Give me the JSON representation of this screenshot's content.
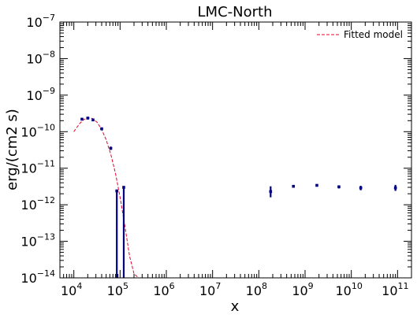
{
  "chart_data": {
    "type": "scatter",
    "title": "LMC-North",
    "xlabel": "x",
    "ylabel": "erg/(cm2 s)",
    "xscale": "log",
    "yscale": "log",
    "xlim": [
      5000,
      200000000000
    ],
    "ylim": [
      1e-14,
      1e-07
    ],
    "grid": false,
    "legend": {
      "placement": "top-right",
      "entries": [
        "Fitted model"
      ]
    },
    "colors": {
      "data": "#000080",
      "model": "#e8002a"
    },
    "x_tick_values": [
      10000,
      100000,
      1000000,
      10000000,
      100000000,
      1000000000,
      10000000000,
      100000000000
    ],
    "x_tick_labels": [
      [
        "10",
        "4"
      ],
      [
        "10",
        "5"
      ],
      [
        "10",
        "6"
      ],
      [
        "10",
        "7"
      ],
      [
        "10",
        "8"
      ],
      [
        "10",
        "9"
      ],
      [
        "10",
        "10"
      ],
      [
        "10",
        "11"
      ]
    ],
    "y_tick_values": [
      1e-14,
      1e-13,
      1e-12,
      1e-11,
      1e-10,
      1e-09,
      1e-08,
      1e-07
    ],
    "y_tick_labels": [
      [
        "10",
        "−14"
      ],
      [
        "10",
        "−13"
      ],
      [
        "10",
        "−12"
      ],
      [
        "10",
        "−11"
      ],
      [
        "10",
        "−10"
      ],
      [
        "10",
        "−9"
      ],
      [
        "10",
        "−8"
      ],
      [
        "10",
        "−7"
      ]
    ],
    "series": [
      {
        "name": "Fitted model",
        "style": "dashed-line",
        "x": [
          10000,
          13000,
          16000,
          20000,
          25000,
          32000,
          40000,
          50000,
          63000,
          80000,
          100000,
          125000,
          160000,
          200000,
          250000,
          280000
        ],
        "y": [
          1e-10,
          1.6e-10,
          2.1e-10,
          2.4e-10,
          2.3e-10,
          1.8e-10,
          1.15e-10,
          6e-11,
          2.4e-11,
          7e-12,
          1.6e-12,
          3e-13,
          4e-14,
          1.3e-14,
          1e-14,
          1e-14
        ]
      },
      {
        "style": "error-bars",
        "points": [
          {
            "x": 15000,
            "y": 2.2e-10,
            "ylo": 2.1e-10,
            "yhi": 2.3e-10
          },
          {
            "x": 20000,
            "y": 2.35e-10,
            "ylo": 2.25e-10,
            "yhi": 2.45e-10
          },
          {
            "x": 26000,
            "y": 2.1e-10,
            "ylo": 2e-10,
            "yhi": 2.2e-10
          },
          {
            "x": 40000,
            "y": 1.2e-10,
            "ylo": 1.1e-10,
            "yhi": 1.3e-10
          },
          {
            "x": 63000,
            "y": 3.5e-11,
            "ylo": 3.2e-11,
            "yhi": 3.9e-11
          },
          {
            "x": 85000,
            "y": 2.4e-12,
            "ylo": 1e-14,
            "yhi": 2.4e-12
          },
          {
            "x": 120000,
            "y": 3e-12,
            "ylo": 1e-14,
            "yhi": 3e-12
          },
          {
            "x": 180000000,
            "y": 2.3e-12,
            "ylo": 1.6e-12,
            "yhi": 3.2e-12
          },
          {
            "x": 560000000,
            "y": 3.2e-12,
            "ylo": 3e-12,
            "yhi": 3.4e-12
          },
          {
            "x": 1800000000,
            "y": 3.4e-12,
            "ylo": 3.2e-12,
            "yhi": 3.6e-12
          },
          {
            "x": 5400000000,
            "y": 3.1e-12,
            "ylo": 2.8e-12,
            "yhi": 3.4e-12
          },
          {
            "x": 16000000000,
            "y": 2.9e-12,
            "ylo": 2.5e-12,
            "yhi": 3.3e-12
          },
          {
            "x": 90000000000,
            "y": 2.9e-12,
            "ylo": 2.4e-12,
            "yhi": 3.5e-12
          }
        ]
      }
    ]
  }
}
